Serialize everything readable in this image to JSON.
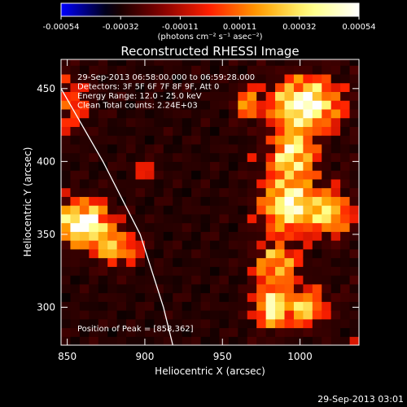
{
  "chart_data": {
    "type": "heatmap",
    "title": "Reconstructed RHESSI Image",
    "xlabel": "Heliocentric X (arcsec)",
    "ylabel": "Heliocentric Y (arcsec)",
    "xlim": [
      846,
      1038
    ],
    "ylim": [
      274,
      470
    ],
    "xticks": [
      850,
      900,
      950,
      1000
    ],
    "yticks": [
      300,
      350,
      400,
      450
    ],
    "colorbar": {
      "ticks": [
        "-0.00054",
        "-0.00032",
        "-0.00011",
        "0.00011",
        "0.00032",
        "0.00054"
      ],
      "range": [
        -0.00054,
        0.00054
      ],
      "unit_label": "(photons cm⁻² s⁻¹ asec⁻²)",
      "colormap": [
        "#0000ff",
        "#000000",
        "#800000",
        "#ff2000",
        "#ffa000",
        "#ffff80",
        "#ffffff"
      ]
    },
    "annotations": [
      "29-Sep-2013 06:58:00.000 to 06:59:28.000",
      "Detectors: 3F 5F 6F 7F 8F 9F, Att 0",
      "Energy Range: 12.0 - 25.0 keV",
      "Clean     Total counts: 2.24E+03"
    ],
    "peak_label": "Position of Peak = [858,362]",
    "peak": {
      "x": 858,
      "y": 362
    },
    "limb": [
      [
        846,
        450
      ],
      [
        873,
        400
      ],
      [
        897,
        350
      ],
      [
        912,
        300
      ],
      [
        918,
        274
      ]
    ],
    "hotspots": [
      {
        "x": 860,
        "y": 358,
        "amp": 1.0,
        "sx": 12,
        "sy": 10
      },
      {
        "x": 882,
        "y": 340,
        "amp": 0.55,
        "sx": 10,
        "sy": 8
      },
      {
        "x": 850,
        "y": 440,
        "amp": 0.35,
        "sx": 10,
        "sy": 14
      },
      {
        "x": 1003,
        "y": 440,
        "amp": 0.95,
        "sx": 14,
        "sy": 12
      },
      {
        "x": 995,
        "y": 405,
        "amp": 0.75,
        "sx": 10,
        "sy": 12
      },
      {
        "x": 993,
        "y": 370,
        "amp": 0.85,
        "sx": 12,
        "sy": 12
      },
      {
        "x": 1020,
        "y": 365,
        "amp": 0.6,
        "sx": 9,
        "sy": 10
      },
      {
        "x": 985,
        "y": 330,
        "amp": 0.55,
        "sx": 10,
        "sy": 10
      },
      {
        "x": 983,
        "y": 300,
        "amp": 0.75,
        "sx": 8,
        "sy": 10
      },
      {
        "x": 1005,
        "y": 300,
        "amp": 0.6,
        "sx": 8,
        "sy": 9
      },
      {
        "x": 965,
        "y": 440,
        "amp": 0.45,
        "sx": 6,
        "sy": 8
      },
      {
        "x": 900,
        "y": 395,
        "amp": 0.25,
        "sx": 6,
        "sy": 6
      }
    ]
  },
  "footer": {
    "timestamp": "29-Sep-2013 03:01"
  }
}
